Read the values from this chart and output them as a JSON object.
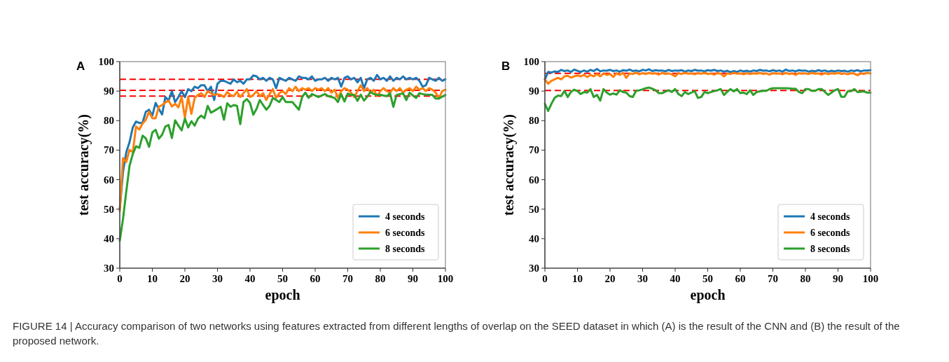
{
  "chart_data": [
    {
      "type": "line",
      "title": "A",
      "xlabel": "epoch",
      "ylabel": "test accuracy(%)",
      "x": [
        0,
        1,
        2,
        3,
        4,
        5,
        6,
        7,
        8,
        9,
        10,
        11,
        12,
        13,
        14,
        15,
        16,
        17,
        18,
        19,
        20,
        21,
        22,
        23,
        24,
        25,
        26,
        27,
        28,
        29,
        30,
        31,
        32,
        33,
        34,
        35,
        36,
        37,
        38,
        39,
        40,
        41,
        42,
        43,
        44,
        45,
        46,
        47,
        48,
        49,
        50,
        51,
        52,
        53,
        54,
        55,
        56,
        57,
        58,
        59,
        60,
        61,
        62,
        63,
        64,
        65,
        66,
        67,
        68,
        69,
        70,
        71,
        72,
        73,
        74,
        75,
        76,
        77,
        78,
        79,
        80,
        81,
        82,
        83,
        84,
        85,
        86,
        87,
        88,
        89,
        90,
        91,
        92,
        93,
        94,
        95,
        96,
        97,
        98,
        99,
        100
      ],
      "series": [
        {
          "name": "4 seconds",
          "color": "#1f77b4",
          "values": [
            50,
            62.7,
            69.3,
            72.7,
            77.7,
            79.7,
            79.2,
            79.3,
            83,
            83.7,
            81.7,
            86,
            84,
            82.1,
            88,
            86.8,
            90,
            86.3,
            88,
            90,
            88,
            90.7,
            90,
            91.5,
            91,
            92,
            92,
            90,
            91.5,
            87,
            92.5,
            93.5,
            93.5,
            93,
            92.5,
            94,
            93,
            93.5,
            92.5,
            94,
            94,
            95.3,
            95,
            94,
            94.5,
            93.5,
            94.5,
            94,
            91,
            94.5,
            94,
            93.5,
            94.5,
            94,
            93.5,
            95,
            94.5,
            94.5,
            94,
            95,
            93.5,
            94,
            94,
            94.5,
            93.5,
            94.5,
            94,
            94.5,
            91.5,
            94.5,
            95,
            94,
            94.5,
            93,
            94.5,
            91,
            94,
            94.5,
            93.5,
            95.5,
            94,
            94.5,
            93.5,
            95,
            93.5,
            94.5,
            94,
            95,
            94,
            94.5,
            94,
            94.5,
            93.5,
            91.5,
            92,
            94.5,
            94,
            93.5,
            94.5,
            93.5,
            94
          ]
        },
        {
          "name": "6 seconds",
          "color": "#ff7f0e",
          "values": [
            49.3,
            67.3,
            66,
            70.1,
            69.3,
            78,
            77,
            79,
            80.3,
            83,
            80.8,
            80.8,
            84.7,
            85.3,
            86.1,
            86.8,
            84.8,
            85.7,
            84.5,
            88,
            81,
            88,
            82.3,
            87.7,
            88.7,
            89.3,
            88,
            90,
            89.3,
            88.7,
            89,
            88.7,
            88,
            89.7,
            88.7,
            88.3,
            89.7,
            88,
            89.3,
            90.7,
            88,
            88.7,
            90,
            88.3,
            89.3,
            87,
            89,
            90.7,
            87.7,
            89.3,
            90,
            89,
            91,
            90,
            91.5,
            90,
            91,
            90.5,
            91,
            90,
            91,
            90.5,
            91,
            90,
            91,
            89.5,
            90.5,
            87.7,
            90,
            91,
            90.5,
            89.5,
            88,
            90,
            92,
            90,
            91,
            89.5,
            90.5,
            88.3,
            90,
            91,
            90,
            89.5,
            91,
            90,
            91,
            89.5,
            90.5,
            91,
            90,
            91.5,
            90.5,
            91,
            90,
            91,
            90.5,
            89.5,
            87.5,
            90,
            90.5
          ]
        },
        {
          "name": "8 seconds",
          "color": "#2ca02c",
          "values": [
            39.3,
            46.7,
            56,
            64.7,
            68.7,
            71.3,
            70.8,
            74.9,
            74,
            71.1,
            76,
            76.9,
            73.9,
            75.2,
            78,
            78.5,
            74.1,
            80.1,
            78.3,
            76.7,
            80.7,
            77.7,
            79.8,
            78.3,
            80.7,
            81.7,
            80.8,
            85,
            82.7,
            83.3,
            84,
            84.7,
            80.3,
            85.9,
            84.7,
            85.3,
            85,
            78.8,
            86.3,
            87.3,
            86,
            82,
            84,
            87,
            85.3,
            83.7,
            85,
            87.7,
            87,
            86.3,
            88,
            86.3,
            86.3,
            86.3,
            85,
            83.7,
            88,
            89.5,
            87.7,
            89,
            88.5,
            88,
            88.5,
            89,
            88.3,
            88,
            87.7,
            86.3,
            89,
            86.5,
            89.2,
            88.7,
            88.7,
            86.7,
            88.8,
            86.8,
            88.1,
            89.7,
            89,
            88.7,
            88.8,
            88.5,
            88.3,
            89.3,
            84.7,
            88.7,
            89,
            89.2,
            87,
            89.5,
            88.5,
            87.7,
            89.3,
            89,
            88.8,
            88.8,
            88.7,
            87.5,
            87.5,
            88.1,
            88.7
          ]
        }
      ],
      "xlim": [
        0,
        100
      ],
      "xticks": [
        0,
        10,
        20,
        30,
        40,
        50,
        60,
        70,
        80,
        90,
        100
      ],
      "ylim": [
        30,
        100
      ],
      "yticks": [
        30,
        40,
        50,
        60,
        70,
        80,
        90,
        100
      ],
      "legend": "bottom right",
      "grid": false,
      "marker": "none",
      "line_style": "solid",
      "ref_lines": [
        {
          "axis": "y",
          "value": 94,
          "color": "#ff0000",
          "line_style": "dashed"
        },
        {
          "axis": "y",
          "value": 90.3,
          "color": "#ff0000",
          "line_style": "dashed"
        },
        {
          "axis": "y",
          "value": 88.3,
          "color": "#ff0000",
          "line_style": "dashed"
        }
      ],
      "annotations": [
        "FIGURE 14 | Accuracy comparison of two networks using features extracted from different lengths of overlap on the SEED dataset in which (A) is the result of the CNN and (B) the result of the proposed network."
      ]
    },
    {
      "type": "line",
      "title": "B",
      "xlabel": "epoch",
      "ylabel": "test accuracy(%)",
      "x": [
        0,
        1,
        2,
        3,
        4,
        5,
        6,
        7,
        8,
        9,
        10,
        11,
        12,
        13,
        14,
        15,
        16,
        17,
        18,
        19,
        20,
        21,
        22,
        23,
        24,
        25,
        26,
        27,
        28,
        29,
        30,
        31,
        32,
        33,
        34,
        35,
        36,
        37,
        38,
        39,
        40,
        41,
        42,
        43,
        44,
        45,
        46,
        47,
        48,
        49,
        50,
        51,
        52,
        53,
        54,
        55,
        56,
        57,
        58,
        59,
        60,
        61,
        62,
        63,
        64,
        65,
        66,
        67,
        68,
        69,
        70,
        71,
        72,
        73,
        74,
        75,
        76,
        77,
        78,
        79,
        80,
        81,
        82,
        83,
        84,
        85,
        86,
        87,
        88,
        89,
        90,
        91,
        92,
        93,
        94,
        95,
        96,
        97,
        98,
        99,
        100
      ],
      "series": [
        {
          "name": "4 seconds",
          "color": "#1f77b4",
          "values": [
            94,
            96.5,
            96.3,
            96.7,
            96.5,
            97.2,
            96.8,
            97,
            96.5,
            97.3,
            96.9,
            96.5,
            97,
            96.6,
            97.2,
            96.8,
            97.5,
            96.7,
            97,
            96.9,
            97.2,
            96.8,
            97,
            96.6,
            97.1,
            96.9,
            97.3,
            96.8,
            97,
            96.7,
            97.2,
            97,
            97.4,
            96.8,
            97.1,
            96.9,
            97,
            96.7,
            97.2,
            96.8,
            97,
            96.9,
            97.1,
            96.6,
            97,
            96.8,
            97.2,
            96.9,
            97,
            96.7,
            97.1,
            96.9,
            97.2,
            96.8,
            97,
            96.6,
            96.9,
            96.4,
            96.8,
            96.5,
            97,
            96.7,
            96.9,
            96.6,
            97,
            96.8,
            97.2,
            96.9,
            97,
            96.7,
            97.1,
            96.8,
            97,
            96.6,
            97.3,
            96.8,
            97,
            96.7,
            97.1,
            96.9,
            97,
            96.6,
            96.9,
            96.7,
            97.1,
            96.8,
            97,
            96.6,
            96.9,
            96.7,
            97,
            96.8,
            96.9,
            96.6,
            97,
            96.8,
            97.1,
            96.7,
            97,
            97,
            97.1
          ]
        },
        {
          "name": "6 seconds",
          "color": "#ff7f0e",
          "values": [
            94,
            92.5,
            93.5,
            94,
            94.5,
            94,
            95,
            95.2,
            94.6,
            95,
            95.3,
            95,
            95.5,
            94.8,
            95.5,
            95,
            95.8,
            95,
            96,
            95.5,
            95.8,
            94.8,
            96,
            95.5,
            96.2,
            94.5,
            96,
            95.8,
            96.3,
            95.7,
            96.1,
            95.8,
            96.2,
            95.9,
            96,
            95.6,
            96.2,
            95.8,
            96,
            95.7,
            95,
            96.1,
            95.8,
            96.2,
            95.9,
            96,
            95.7,
            96.1,
            95.9,
            96.2,
            95.8,
            96,
            95.6,
            96.1,
            95.9,
            95,
            96,
            95.8,
            96.2,
            95.9,
            96,
            95.7,
            96.1,
            95.8,
            96,
            95.9,
            96.2,
            95.8,
            96,
            95.6,
            96.1,
            95.9,
            96,
            95.7,
            96.2,
            95.8,
            96,
            95.5,
            96.1,
            95.9,
            96,
            95.8,
            96.2,
            95.9,
            96,
            95.6,
            96.1,
            95.8,
            96,
            95.9,
            96.2,
            95.8,
            96,
            95.7,
            96.1,
            95.9,
            95.4,
            96,
            95.8,
            96.2,
            96
          ]
        },
        {
          "name": "8 seconds",
          "color": "#2ca02c",
          "values": [
            85.7,
            83.3,
            85.7,
            87.7,
            88.5,
            88.3,
            90.1,
            88,
            89.7,
            90.5,
            90,
            89,
            89.7,
            89.5,
            90.7,
            88,
            88.7,
            86.8,
            90.7,
            89.5,
            88.8,
            89.2,
            88.8,
            90.3,
            89.7,
            89.5,
            88.3,
            88,
            90.1,
            90.3,
            90.6,
            91,
            91.2,
            90.8,
            90.3,
            89.3,
            89.3,
            89.8,
            90.3,
            89.7,
            90.7,
            89,
            88.3,
            89.7,
            89,
            89.5,
            90,
            87.7,
            88,
            89.7,
            89.3,
            89.7,
            90,
            90.3,
            90.7,
            88.7,
            89.8,
            90.7,
            89.9,
            90.7,
            89.3,
            89.5,
            89,
            90.3,
            88.7,
            89.7,
            89.9,
            90.1,
            90.1,
            90.7,
            91,
            91,
            91,
            91,
            91,
            90.9,
            90.8,
            90.8,
            89.7,
            89.3,
            90.7,
            90.7,
            90.1,
            90.1,
            90.7,
            90.7,
            89.7,
            88.7,
            89.5,
            90.3,
            90.7,
            88.1,
            88.1,
            90,
            90,
            90.7,
            89.7,
            89.8,
            89.9,
            89.5,
            89.5
          ]
        }
      ],
      "xlim": [
        0,
        100
      ],
      "xticks": [
        0,
        10,
        20,
        30,
        40,
        50,
        60,
        70,
        80,
        90,
        100
      ],
      "ylim": [
        30,
        100
      ],
      "yticks": [
        30,
        40,
        50,
        60,
        70,
        80,
        90,
        100
      ],
      "legend": "bottom right",
      "grid": false,
      "marker": "none",
      "line_style": "solid",
      "ref_lines": [
        {
          "axis": "y",
          "value": 96,
          "color": "#ff0000",
          "line_style": "dashed"
        },
        {
          "axis": "y",
          "value": 90.2,
          "color": "#ff0000",
          "line_style": "dashed"
        }
      ]
    }
  ]
}
